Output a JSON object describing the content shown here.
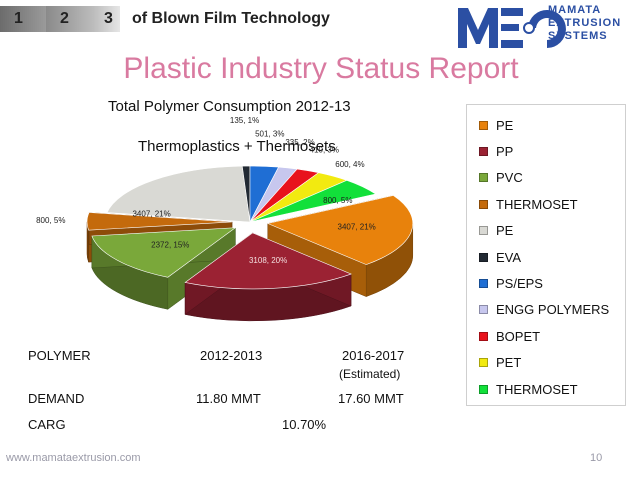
{
  "header": {
    "step_1": "1",
    "step_2": "2",
    "step_3": "3",
    "tagline": "of Blown Film Technology",
    "logo_mark": "MEC",
    "logo_lines": [
      "MAMATA",
      "EXTRUSION",
      "SYSTEMS"
    ],
    "logo_color": "#2b4fa3"
  },
  "slide": {
    "title": "Plastic Industry Status Report",
    "title_color": "#d97aa0",
    "footer_url": "www.mamataextrusion.com",
    "page_number": "10"
  },
  "chart_data": {
    "type": "pie",
    "title": "Total Polymer Consumption 2012-13",
    "subtitle": "Thermoplastics + Thermosets",
    "legend_position": "right",
    "three_d": true,
    "slices": [
      {
        "name": "PE",
        "value": 3407,
        "percent": 21,
        "label": "3407, 21%",
        "color": "#e8820c"
      },
      {
        "name": "PP",
        "value": 3108,
        "percent": 20,
        "label": "3108, 20%",
        "color": "#9b2233"
      },
      {
        "name": "PVC",
        "value": 2372,
        "percent": 15,
        "label": "2372, 15%",
        "color": "#7aa83a"
      },
      {
        "name": "THERMOSET",
        "value": 800,
        "percent": 5,
        "label": "800, 5%",
        "color": "#c46a0c"
      },
      {
        "name": "PE",
        "value": 3407,
        "percent": 21,
        "label": "3407, 21%",
        "color": "#d9d9d4"
      },
      {
        "name": "EVA",
        "value": 135,
        "percent": 1,
        "label": "135, 1%",
        "color": "#222a33"
      },
      {
        "name": "PS/EPS",
        "value": 501,
        "percent": 3,
        "label": "501, 3%",
        "color": "#1f6ed4"
      },
      {
        "name": "ENGG POLYMERS",
        "value": 335,
        "percent": 2,
        "label": "335, 2%",
        "color": "#c7c7ee"
      },
      {
        "name": "BOPET",
        "value": 410,
        "percent": 3,
        "label": "410, 3%",
        "color": "#e8121c"
      },
      {
        "name": "PET",
        "value": 600,
        "percent": 4,
        "label": "600, 4%",
        "color": "#f2ea10"
      },
      {
        "name": "THERMOSET",
        "value": 800,
        "percent": 5,
        "label": "800, 5%",
        "color": "#12e03a"
      }
    ]
  },
  "table": {
    "headers": [
      "POLYMER",
      "2012-2013",
      "2016-2017"
    ],
    "estimated_note": "(Estimated)",
    "demand": {
      "label": "DEMAND",
      "y2012": "11.80 MMT",
      "y2016": "17.60 MMT"
    },
    "carg": {
      "label": "CARG",
      "value": "10.70%"
    }
  }
}
